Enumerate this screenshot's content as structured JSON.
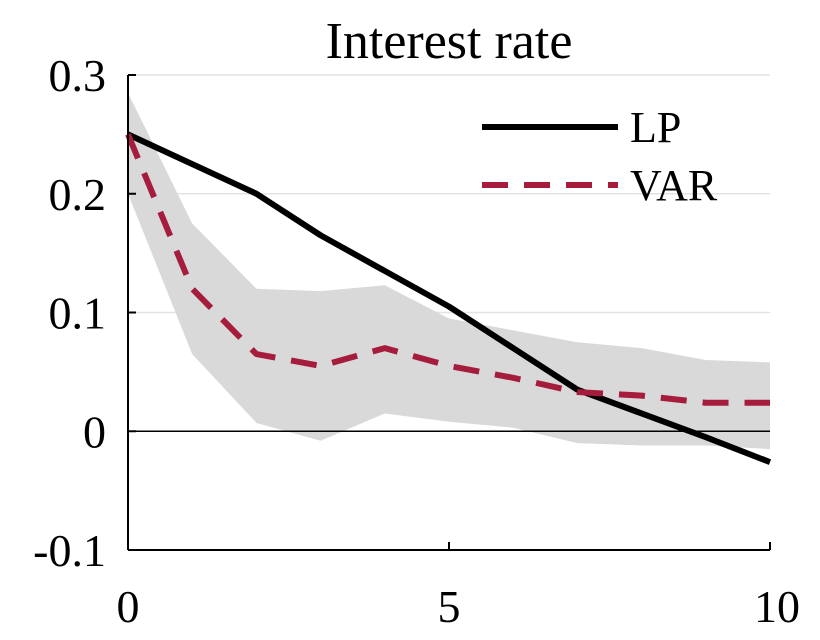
{
  "chart_data": {
    "type": "line",
    "title": "Interest rate",
    "xlabel": "",
    "ylabel": "",
    "xlim": [
      0,
      10
    ],
    "ylim": [
      -0.1,
      0.3
    ],
    "x_ticks": [
      0,
      5,
      10
    ],
    "y_ticks": [
      -0.1,
      0,
      0.1,
      0.2,
      0.3
    ],
    "x_tick_labels": [
      "0",
      "5",
      "10"
    ],
    "y_tick_labels": [
      "-0.1",
      "0",
      "0.1",
      "0.2",
      "0.3"
    ],
    "grid": "horizontal",
    "zero_line": true,
    "legend_position": "top-right",
    "x": [
      0,
      1,
      2,
      3,
      4,
      5,
      6,
      7,
      8,
      9,
      10
    ],
    "series": [
      {
        "name": "LP",
        "color": "#000000",
        "style": "solid",
        "values": [
          0.25,
          0.225,
          0.2,
          0.165,
          0.135,
          0.105,
          0.07,
          0.035,
          0.015,
          -0.005,
          -0.026
        ]
      },
      {
        "name": "VAR",
        "color": "#a51c3c",
        "style": "dashed",
        "values": [
          0.25,
          0.12,
          0.065,
          0.055,
          0.07,
          0.055,
          0.045,
          0.033,
          0.03,
          0.024,
          0.024
        ]
      }
    ],
    "band": {
      "color": "#d9d9d9",
      "upper": [
        0.285,
        0.175,
        0.12,
        0.118,
        0.123,
        0.095,
        0.085,
        0.075,
        0.07,
        0.06,
        0.058
      ],
      "lower": [
        0.2,
        0.065,
        0.007,
        -0.008,
        0.015,
        0.008,
        0.003,
        -0.01,
        -0.012,
        -0.012,
        -0.015
      ]
    }
  }
}
